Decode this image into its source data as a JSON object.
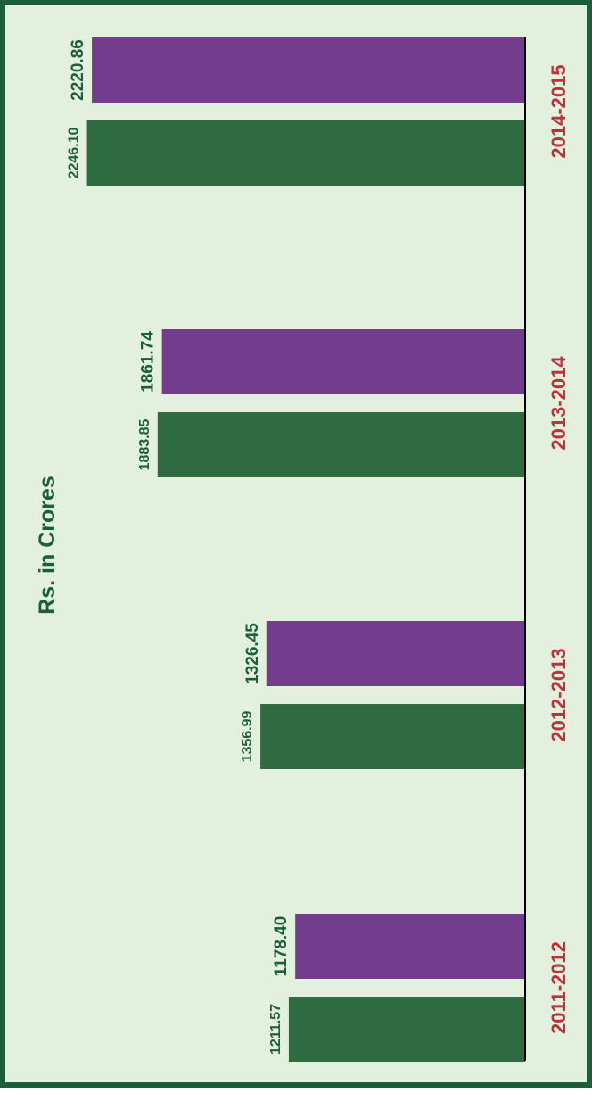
{
  "chart_data": {
    "type": "bar",
    "orientation": "horizontal-rotated",
    "title": "",
    "ylabel": "Rs. in Crores",
    "categories": [
      "2011-2012",
      "2012-2013",
      "2013-2014",
      "2014-2015"
    ],
    "series": [
      {
        "values": [
          1211.57,
          1356.99,
          1883.85,
          2246.1
        ],
        "color": "#2f6b41"
      },
      {
        "values": [
          1178.4,
          1326.45,
          1861.74,
          2220.86
        ],
        "color": "#743c8c"
      }
    ],
    "value_labels": [
      [
        "1211.57",
        "1356.99",
        "1883.85",
        "2246.10"
      ],
      [
        "1178.40",
        "1326.45",
        "1861.74",
        "2220.86"
      ]
    ],
    "legend": "none",
    "grid": false,
    "colors": {
      "background": "#e3f0dd",
      "border": "#1b5e3b",
      "category_text": "#c0303a",
      "value_text": "#1b5e3b",
      "baseline": "#000000"
    }
  }
}
